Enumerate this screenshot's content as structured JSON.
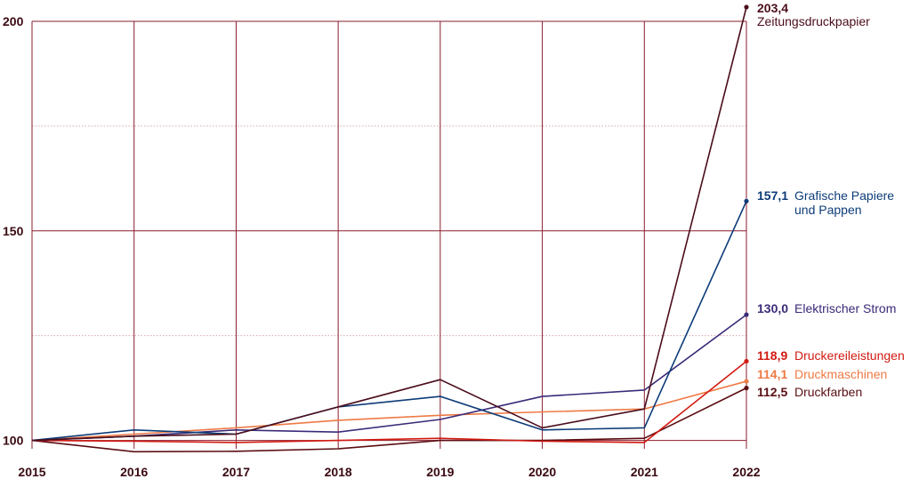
{
  "chart_data": {
    "type": "line",
    "x": [
      "2015",
      "2016",
      "2017",
      "2018",
      "2019",
      "2020",
      "2021",
      "2022"
    ],
    "y_ticks": [
      "100",
      "150",
      "200"
    ],
    "ylim": [
      98,
      203.4
    ],
    "grid": true,
    "colors": {
      "grid_major": "#8a1c2b",
      "grid_minor": "#d7a7ae",
      "tick_text": "#3a0a12"
    },
    "series": [
      {
        "name": "Zeitungsdruckpapier",
        "end_label": "203,4",
        "color": "#4a0d1b",
        "values": [
          100,
          101,
          101.5,
          108,
          114.5,
          103,
          107.5,
          203.4
        ]
      },
      {
        "name": "Grafische Papiere und Pappen",
        "end_label": "157,1",
        "color": "#0d3c78",
        "values": [
          100,
          102.5,
          101.5,
          108,
          110.5,
          102.5,
          103,
          157.1
        ]
      },
      {
        "name": "Elektrischer Strom",
        "end_label": "130,0",
        "color": "#3b2a78",
        "values": [
          100,
          101,
          102.5,
          102,
          105,
          110.5,
          112,
          130.0
        ]
      },
      {
        "name": "Druckereileistungen",
        "end_label": "118,9",
        "color": "#d11a12",
        "values": [
          100,
          99.8,
          99.5,
          100,
          100.5,
          99.8,
          99.5,
          118.9
        ]
      },
      {
        "name": "Druckmaschinen",
        "end_label": "114,1",
        "color": "#ee7a45",
        "values": [
          100,
          101.5,
          103,
          104.8,
          106,
          106.8,
          107.5,
          114.1
        ]
      },
      {
        "name": "Druckfarben",
        "end_label": "112,5",
        "color": "#5a0d12",
        "values": [
          100,
          97.3,
          97.4,
          98,
          100,
          100,
          100.5,
          112.5
        ]
      }
    ]
  }
}
